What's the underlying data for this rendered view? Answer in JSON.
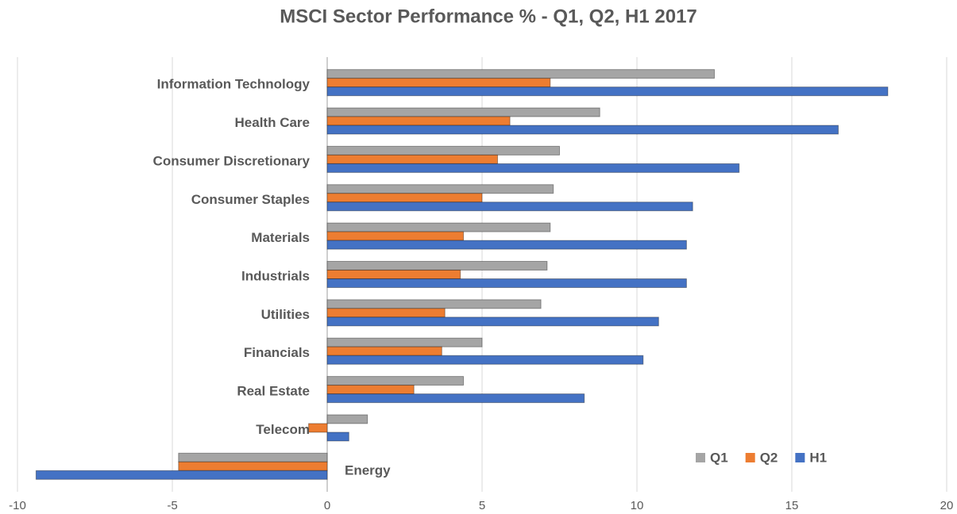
{
  "chart_data": {
    "type": "bar",
    "orientation": "horizontal",
    "title": "MSCI Sector Performance % - Q1, Q2, H1 2017",
    "categories": [
      "Information Technology",
      "Health Care",
      "Consumer Discretionary",
      "Consumer Staples",
      "Materials",
      "Industrials",
      "Utilities",
      "Financials",
      "Real Estate",
      "Telecom",
      "Energy"
    ],
    "series": [
      {
        "name": "Q1",
        "color": "#a5a5a5",
        "values": [
          12.5,
          8.8,
          7.5,
          7.3,
          7.2,
          7.1,
          6.9,
          5.0,
          4.4,
          1.3,
          -4.8
        ]
      },
      {
        "name": "Q2",
        "color": "#ed7d31",
        "values": [
          7.2,
          5.9,
          5.5,
          5.0,
          4.4,
          4.3,
          3.8,
          3.7,
          2.8,
          -0.6,
          -4.8
        ]
      },
      {
        "name": "H1",
        "color": "#4472c4",
        "values": [
          18.1,
          16.5,
          13.3,
          11.8,
          11.6,
          11.6,
          10.7,
          10.2,
          8.3,
          0.7,
          -9.4
        ]
      }
    ],
    "xlim": [
      -10,
      20
    ],
    "xticks": [
      -10,
      -5,
      0,
      5,
      10,
      15,
      20
    ],
    "grid": true,
    "legend": "bottom-right"
  }
}
